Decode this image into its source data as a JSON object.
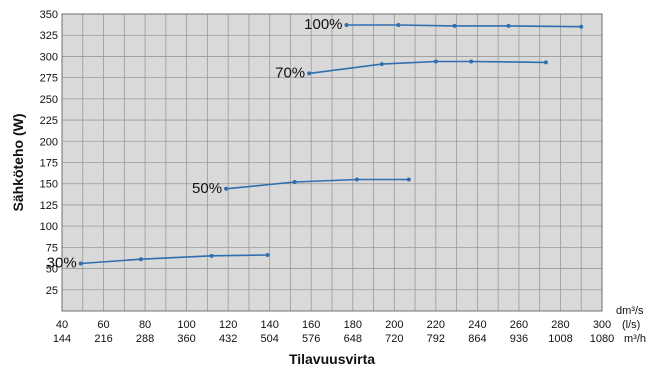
{
  "chart_data": {
    "type": "line",
    "xlabel": "Tilavuusvirta",
    "ylabel": "Sähköteho (W)",
    "xlim": [
      40,
      300
    ],
    "ylim": [
      0,
      350
    ],
    "grid": true,
    "x_unit_top": "dm³/s",
    "x_unit_mid": "(l/s)",
    "x_unit_bottom": "m³/h",
    "x_ticks": [
      "40",
      "60",
      "80",
      "100",
      "120",
      "140",
      "160",
      "180",
      "200",
      "220",
      "240",
      "260",
      "280",
      "300"
    ],
    "x_ticks_m3h": [
      "144",
      "216",
      "288",
      "360",
      "432",
      "504",
      "576",
      "648",
      "720",
      "792",
      "864",
      "936",
      "1008",
      "1080"
    ],
    "y_ticks": [
      "25",
      "50",
      "75",
      "100",
      "125",
      "150",
      "175",
      "200",
      "225",
      "250",
      "275",
      "300",
      "325",
      "350"
    ],
    "colors": {
      "line": "#2f6fb0",
      "plot_bg": "#d9d9d9",
      "grid": "#9a9a9a",
      "frame": "#707070"
    },
    "series": [
      {
        "name": "30%",
        "x": [
          49,
          78,
          112,
          139
        ],
        "y": [
          56,
          61,
          65,
          66
        ]
      },
      {
        "name": "50%",
        "x": [
          119,
          152,
          182,
          207
        ],
        "y": [
          144,
          152,
          155,
          155
        ]
      },
      {
        "name": "70%",
        "x": [
          159,
          194,
          220,
          237,
          273
        ],
        "y": [
          280,
          291,
          294,
          294,
          293
        ]
      },
      {
        "name": "100%",
        "x": [
          177,
          202,
          229,
          255,
          290
        ],
        "y": [
          337,
          337,
          336,
          336,
          335
        ]
      }
    ]
  }
}
